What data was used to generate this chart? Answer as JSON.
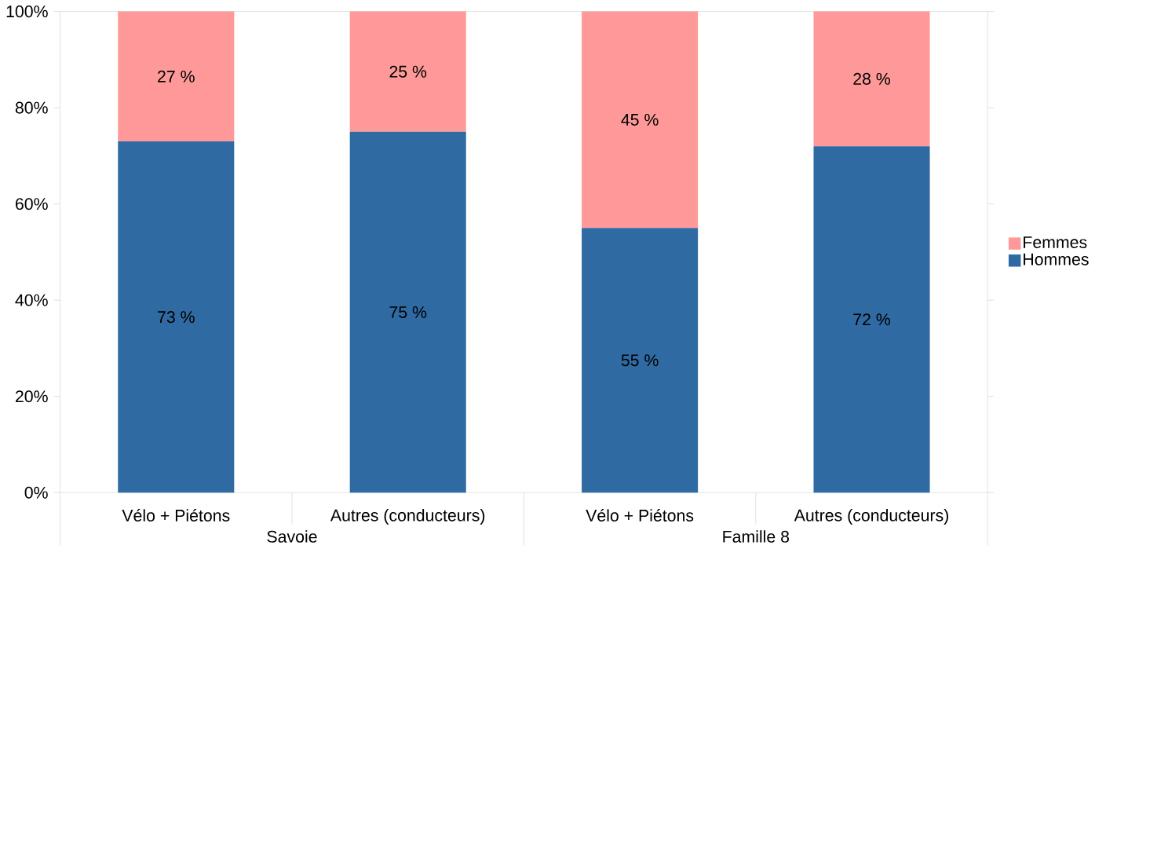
{
  "chart_data": {
    "type": "bar",
    "stacked": true,
    "categories": [
      "Vélo + Piétons",
      "Autres (conducteurs)",
      "Vélo + Piétons",
      "Autres (conducteurs)"
    ],
    "series": [
      {
        "name": "Hommes",
        "color": "#2f6aa3",
        "values": [
          73,
          75,
          55,
          72
        ],
        "value_labels": [
          "73 %",
          "75 %",
          "55 %",
          "72 %"
        ]
      },
      {
        "name": "Femmes",
        "color": "#ff9999",
        "values": [
          27,
          25,
          45,
          28
        ],
        "value_labels": [
          "27 %",
          "25 %",
          "45 %",
          "28 %"
        ]
      }
    ],
    "annotations": [
      "Savoie",
      "Famille 8"
    ],
    "ylim": [
      0,
      100
    ],
    "yticks": [
      {
        "value": 0,
        "label": "0%"
      },
      {
        "value": 20,
        "label": "20%"
      },
      {
        "value": 40,
        "label": "40%"
      },
      {
        "value": 60,
        "label": "60%"
      },
      {
        "value": 80,
        "label": "80%"
      },
      {
        "value": 100,
        "label": "100%"
      }
    ],
    "legend": "right"
  }
}
